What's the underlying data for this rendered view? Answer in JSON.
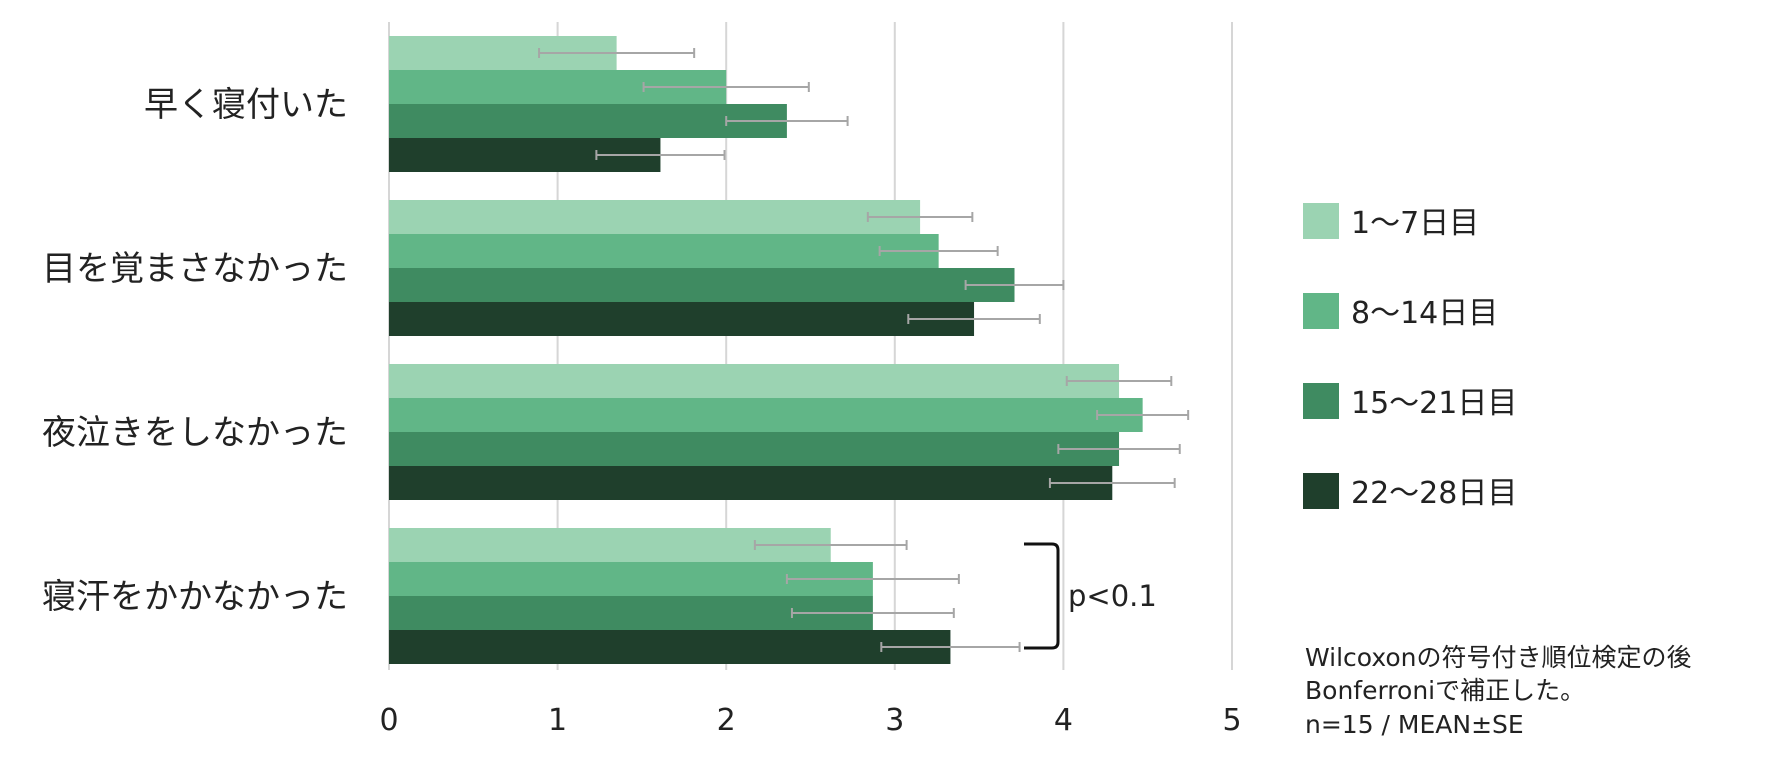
{
  "chart_data": {
    "type": "bar",
    "orientation": "horizontal",
    "categories": [
      "早く寝付いた",
      "目を覚まさなかった",
      "夜泣きをしなかった",
      "寝汗をかかなかった"
    ],
    "series": [
      {
        "name": "1〜7日目",
        "color": "#9bd3b2",
        "values": [
          1.35,
          3.15,
          4.33,
          2.62
        ],
        "errors": [
          0.46,
          0.31,
          0.31,
          0.45
        ]
      },
      {
        "name": "8〜14日目",
        "color": "#61b687",
        "values": [
          2.0,
          3.26,
          4.47,
          2.87
        ],
        "errors": [
          0.49,
          0.35,
          0.27,
          0.51
        ]
      },
      {
        "name": "15〜21日目",
        "color": "#3f8b61",
        "values": [
          2.36,
          3.71,
          4.33,
          2.87
        ],
        "errors": [
          0.36,
          0.29,
          0.36,
          0.48
        ]
      },
      {
        "name": "22〜28日目",
        "color": "#1f3f2c",
        "values": [
          1.61,
          3.47,
          4.29,
          3.33
        ],
        "errors": [
          0.38,
          0.39,
          0.37,
          0.41
        ]
      }
    ],
    "xlim": [
      0,
      5
    ],
    "ticks": [
      "0",
      "1",
      "2",
      "3",
      "4",
      "5"
    ],
    "grid": true,
    "legend_position": "right",
    "annotation": {
      "label": "p<0.1",
      "category": "寝汗をかかなかった",
      "between": [
        "1〜7日目",
        "22〜28日目"
      ]
    },
    "title": "",
    "xlabel": "",
    "ylabel": ""
  },
  "note": {
    "lines": [
      "Wilcoxonの符号付き順位検定の後",
      "Bonferroniで補正した。",
      "n=15 / MEAN±SE"
    ]
  }
}
